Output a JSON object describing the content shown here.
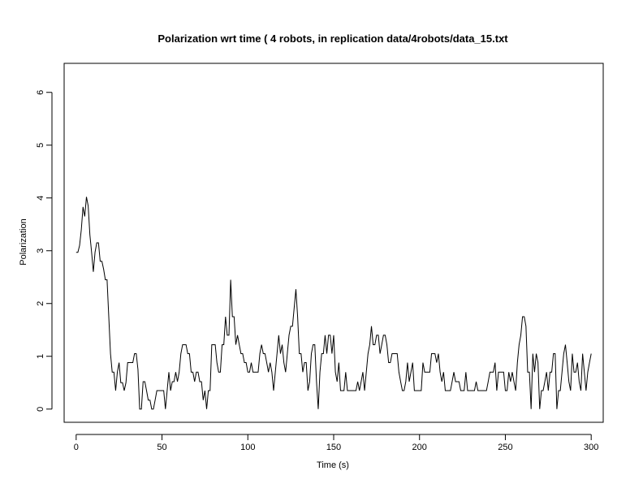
{
  "chart_data": {
    "type": "line",
    "title": "Polarization wrt time ( 4 robots, in replication  data/4robots/data_15.txt",
    "xlabel": "Time (s)",
    "ylabel": "Polarization",
    "xlim": [
      -7,
      307
    ],
    "ylim": [
      -0.25,
      6.55
    ],
    "xticks": [
      0,
      50,
      100,
      150,
      200,
      250,
      300
    ],
    "yticks": [
      0,
      1,
      2,
      3,
      4,
      5,
      6
    ],
    "grid": false,
    "series": [
      {
        "color": "#000000",
        "points": [
          [
            0,
            2.97
          ],
          [
            1,
            2.97
          ],
          [
            2,
            3.1
          ],
          [
            3,
            3.4
          ],
          [
            4,
            3.83
          ],
          [
            5,
            3.65
          ],
          [
            6,
            4.02
          ],
          [
            7,
            3.85
          ],
          [
            8,
            3.3
          ],
          [
            9,
            2.97
          ],
          [
            10,
            2.6
          ],
          [
            11,
            2.97
          ],
          [
            12,
            3.15
          ],
          [
            13,
            3.15
          ],
          [
            14,
            2.8
          ],
          [
            15,
            2.8
          ],
          [
            16,
            2.65
          ],
          [
            17,
            2.45
          ],
          [
            18,
            2.45
          ],
          [
            19,
            1.75
          ],
          [
            20,
            1.05
          ],
          [
            21,
            0.7
          ],
          [
            22,
            0.7
          ],
          [
            23,
            0.35
          ],
          [
            24,
            0.7
          ],
          [
            25,
            0.88
          ],
          [
            26,
            0.5
          ],
          [
            27,
            0.5
          ],
          [
            28,
            0.35
          ],
          [
            29,
            0.5
          ],
          [
            30,
            0.88
          ],
          [
            31,
            0.88
          ],
          [
            32,
            0.88
          ],
          [
            33,
            0.88
          ],
          [
            34,
            1.05
          ],
          [
            35,
            1.05
          ],
          [
            36,
            0.75
          ],
          [
            37,
            0.0
          ],
          [
            38,
            0.0
          ],
          [
            39,
            0.52
          ],
          [
            40,
            0.52
          ],
          [
            41,
            0.35
          ],
          [
            42,
            0.17
          ],
          [
            43,
            0.17
          ],
          [
            44,
            0.0
          ],
          [
            45,
            0.0
          ],
          [
            46,
            0.17
          ],
          [
            47,
            0.35
          ],
          [
            48,
            0.35
          ],
          [
            49,
            0.35
          ],
          [
            50,
            0.35
          ],
          [
            51,
            0.35
          ],
          [
            52,
            0.0
          ],
          [
            53,
            0.35
          ],
          [
            54,
            0.7
          ],
          [
            55,
            0.35
          ],
          [
            56,
            0.52
          ],
          [
            57,
            0.52
          ],
          [
            58,
            0.7
          ],
          [
            59,
            0.52
          ],
          [
            60,
            0.7
          ],
          [
            61,
            1.05
          ],
          [
            62,
            1.22
          ],
          [
            63,
            1.22
          ],
          [
            64,
            1.22
          ],
          [
            65,
            1.05
          ],
          [
            66,
            1.05
          ],
          [
            67,
            0.7
          ],
          [
            68,
            0.7
          ],
          [
            69,
            0.52
          ],
          [
            70,
            0.7
          ],
          [
            71,
            0.7
          ],
          [
            72,
            0.52
          ],
          [
            73,
            0.52
          ],
          [
            74,
            0.17
          ],
          [
            75,
            0.35
          ],
          [
            76,
            0.0
          ],
          [
            77,
            0.35
          ],
          [
            78,
            0.35
          ],
          [
            79,
            1.22
          ],
          [
            80,
            1.22
          ],
          [
            81,
            1.22
          ],
          [
            82,
            0.88
          ],
          [
            83,
            0.7
          ],
          [
            84,
            0.7
          ],
          [
            85,
            1.22
          ],
          [
            86,
            1.22
          ],
          [
            87,
            1.75
          ],
          [
            88,
            1.4
          ],
          [
            89,
            1.4
          ],
          [
            90,
            2.45
          ],
          [
            91,
            1.75
          ],
          [
            92,
            1.75
          ],
          [
            93,
            1.22
          ],
          [
            94,
            1.4
          ],
          [
            95,
            1.22
          ],
          [
            96,
            1.05
          ],
          [
            97,
            1.05
          ],
          [
            98,
            0.88
          ],
          [
            99,
            0.88
          ],
          [
            100,
            0.7
          ],
          [
            101,
            0.7
          ],
          [
            102,
            0.88
          ],
          [
            103,
            0.7
          ],
          [
            104,
            0.7
          ],
          [
            105,
            0.7
          ],
          [
            106,
            0.7
          ],
          [
            107,
            1.05
          ],
          [
            108,
            1.22
          ],
          [
            109,
            1.05
          ],
          [
            110,
            1.05
          ],
          [
            111,
            0.88
          ],
          [
            112,
            0.7
          ],
          [
            113,
            0.88
          ],
          [
            114,
            0.7
          ],
          [
            115,
            0.35
          ],
          [
            116,
            0.7
          ],
          [
            117,
            1.05
          ],
          [
            118,
            1.4
          ],
          [
            119,
            1.05
          ],
          [
            120,
            1.22
          ],
          [
            121,
            0.88
          ],
          [
            122,
            0.7
          ],
          [
            123,
            1.05
          ],
          [
            124,
            1.4
          ],
          [
            125,
            1.57
          ],
          [
            126,
            1.57
          ],
          [
            127,
            1.92
          ],
          [
            128,
            2.27
          ],
          [
            129,
            1.75
          ],
          [
            130,
            1.05
          ],
          [
            131,
            1.05
          ],
          [
            132,
            0.7
          ],
          [
            133,
            0.88
          ],
          [
            134,
            0.88
          ],
          [
            135,
            0.35
          ],
          [
            136,
            0.52
          ],
          [
            137,
            1.05
          ],
          [
            138,
            1.22
          ],
          [
            139,
            1.22
          ],
          [
            140,
            0.52
          ],
          [
            141,
            0.0
          ],
          [
            142,
            0.7
          ],
          [
            143,
            1.05
          ],
          [
            144,
            1.05
          ],
          [
            145,
            1.4
          ],
          [
            146,
            1.05
          ],
          [
            147,
            1.4
          ],
          [
            148,
            1.4
          ],
          [
            149,
            1.05
          ],
          [
            150,
            1.4
          ],
          [
            151,
            0.7
          ],
          [
            152,
            0.52
          ],
          [
            153,
            0.88
          ],
          [
            154,
            0.35
          ],
          [
            155,
            0.35
          ],
          [
            156,
            0.35
          ],
          [
            157,
            0.7
          ],
          [
            158,
            0.35
          ],
          [
            159,
            0.35
          ],
          [
            160,
            0.35
          ],
          [
            161,
            0.35
          ],
          [
            162,
            0.35
          ],
          [
            163,
            0.35
          ],
          [
            164,
            0.52
          ],
          [
            165,
            0.35
          ],
          [
            166,
            0.52
          ],
          [
            167,
            0.7
          ],
          [
            168,
            0.35
          ],
          [
            169,
            0.7
          ],
          [
            170,
            1.05
          ],
          [
            171,
            1.22
          ],
          [
            172,
            1.57
          ],
          [
            173,
            1.22
          ],
          [
            174,
            1.22
          ],
          [
            175,
            1.4
          ],
          [
            176,
            1.4
          ],
          [
            177,
            1.05
          ],
          [
            178,
            1.22
          ],
          [
            179,
            1.4
          ],
          [
            180,
            1.4
          ],
          [
            181,
            1.22
          ],
          [
            182,
            0.88
          ],
          [
            183,
            0.88
          ],
          [
            184,
            1.05
          ],
          [
            185,
            1.05
          ],
          [
            186,
            1.05
          ],
          [
            187,
            1.05
          ],
          [
            188,
            0.7
          ],
          [
            189,
            0.52
          ],
          [
            190,
            0.35
          ],
          [
            191,
            0.35
          ],
          [
            192,
            0.52
          ],
          [
            193,
            0.88
          ],
          [
            194,
            0.52
          ],
          [
            195,
            0.7
          ],
          [
            196,
            0.88
          ],
          [
            197,
            0.35
          ],
          [
            198,
            0.35
          ],
          [
            199,
            0.35
          ],
          [
            200,
            0.35
          ],
          [
            201,
            0.35
          ],
          [
            202,
            0.88
          ],
          [
            203,
            0.7
          ],
          [
            204,
            0.7
          ],
          [
            205,
            0.7
          ],
          [
            206,
            0.7
          ],
          [
            207,
            1.05
          ],
          [
            208,
            1.05
          ],
          [
            209,
            1.05
          ],
          [
            210,
            0.88
          ],
          [
            211,
            1.05
          ],
          [
            212,
            0.7
          ],
          [
            213,
            0.52
          ],
          [
            214,
            0.7
          ],
          [
            215,
            0.35
          ],
          [
            216,
            0.35
          ],
          [
            217,
            0.35
          ],
          [
            218,
            0.35
          ],
          [
            219,
            0.52
          ],
          [
            220,
            0.7
          ],
          [
            221,
            0.52
          ],
          [
            222,
            0.52
          ],
          [
            223,
            0.52
          ],
          [
            224,
            0.35
          ],
          [
            225,
            0.35
          ],
          [
            226,
            0.35
          ],
          [
            227,
            0.7
          ],
          [
            228,
            0.35
          ],
          [
            229,
            0.35
          ],
          [
            230,
            0.35
          ],
          [
            231,
            0.35
          ],
          [
            232,
            0.35
          ],
          [
            233,
            0.52
          ],
          [
            234,
            0.35
          ],
          [
            235,
            0.35
          ],
          [
            236,
            0.35
          ],
          [
            237,
            0.35
          ],
          [
            238,
            0.35
          ],
          [
            239,
            0.35
          ],
          [
            240,
            0.52
          ],
          [
            241,
            0.7
          ],
          [
            242,
            0.7
          ],
          [
            243,
            0.7
          ],
          [
            244,
            0.88
          ],
          [
            245,
            0.35
          ],
          [
            246,
            0.7
          ],
          [
            247,
            0.7
          ],
          [
            248,
            0.7
          ],
          [
            249,
            0.7
          ],
          [
            250,
            0.35
          ],
          [
            251,
            0.35
          ],
          [
            252,
            0.7
          ],
          [
            253,
            0.52
          ],
          [
            254,
            0.7
          ],
          [
            255,
            0.52
          ],
          [
            256,
            0.35
          ],
          [
            257,
            0.88
          ],
          [
            258,
            1.22
          ],
          [
            259,
            1.4
          ],
          [
            260,
            1.75
          ],
          [
            261,
            1.75
          ],
          [
            262,
            1.57
          ],
          [
            263,
            0.7
          ],
          [
            264,
            0.7
          ],
          [
            265,
            0.0
          ],
          [
            266,
            1.05
          ],
          [
            267,
            0.7
          ],
          [
            268,
            1.05
          ],
          [
            269,
            0.88
          ],
          [
            270,
            0.0
          ],
          [
            271,
            0.35
          ],
          [
            272,
            0.35
          ],
          [
            273,
            0.52
          ],
          [
            274,
            0.7
          ],
          [
            275,
            0.35
          ],
          [
            276,
            0.7
          ],
          [
            277,
            0.7
          ],
          [
            278,
            1.05
          ],
          [
            279,
            1.05
          ],
          [
            280,
            0.0
          ],
          [
            281,
            0.35
          ],
          [
            282,
            0.35
          ],
          [
            283,
            0.7
          ],
          [
            284,
            1.05
          ],
          [
            285,
            1.22
          ],
          [
            286,
            0.88
          ],
          [
            287,
            0.52
          ],
          [
            288,
            0.35
          ],
          [
            289,
            1.05
          ],
          [
            290,
            0.7
          ],
          [
            291,
            0.7
          ],
          [
            292,
            0.88
          ],
          [
            293,
            0.52
          ],
          [
            294,
            0.35
          ],
          [
            295,
            1.05
          ],
          [
            296,
            0.7
          ],
          [
            297,
            0.35
          ],
          [
            298,
            0.7
          ],
          [
            299,
            0.88
          ],
          [
            300,
            1.05
          ]
        ]
      }
    ]
  }
}
